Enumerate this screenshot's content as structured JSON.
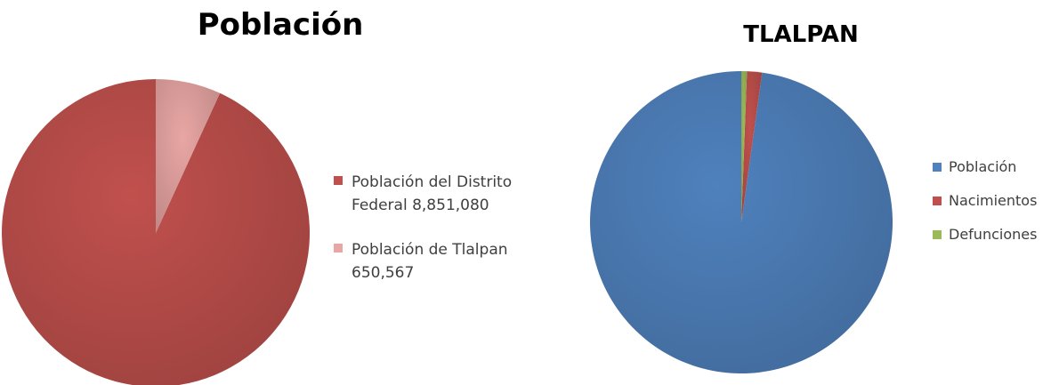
{
  "chart_data": [
    {
      "type": "pie",
      "title": "Población",
      "legend_position": "right",
      "slices": [
        {
          "label": "Población del Distrito Federal 8,851,080",
          "value": 8851080,
          "color": "#C0504D"
        },
        {
          "label": "Población de Tlalpan 650,567",
          "value": 650567,
          "color": "#E8A6A4"
        }
      ]
    },
    {
      "type": "pie",
      "title": "TLALPAN",
      "legend_position": "right",
      "slices": [
        {
          "label": "Población",
          "value": 97.8,
          "color": "#4F81BD"
        },
        {
          "label": "Nacimientos",
          "value": 1.6,
          "color": "#C0504D"
        },
        {
          "label": "Defunciones",
          "value": 0.6,
          "color": "#9BBB59"
        }
      ]
    }
  ]
}
